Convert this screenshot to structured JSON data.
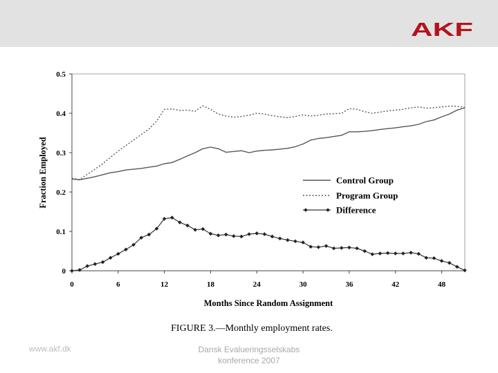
{
  "slide": {
    "logo_text": "AKF",
    "logo_color": "#b5121b",
    "footer_url": "www.akf.dk",
    "footer_line1": "Dansk Evalueringsselskabs",
    "footer_line2": "konference 2007"
  },
  "chart_data": {
    "type": "line",
    "title": "FIGURE 3.—Monthly employment rates.",
    "xlabel": "Months Since Random Assignment",
    "ylabel": "Fraction Employed",
    "xlim": [
      0,
      51
    ],
    "ylim": [
      0,
      0.5
    ],
    "xticks": [
      0,
      6,
      12,
      18,
      24,
      30,
      36,
      42,
      48
    ],
    "xtick_labels": [
      "0",
      "6",
      "12",
      "18",
      "24",
      "30",
      "36",
      "42",
      "48"
    ],
    "yticks": [
      0,
      0.1,
      0.2,
      0.3,
      0.4,
      0.5
    ],
    "ytick_labels": [
      "0",
      "0.1",
      "0.2",
      "0.3",
      "0.4",
      "0.5"
    ],
    "legend": {
      "placement": "middle-right"
    },
    "series": [
      {
        "name": "Control Group",
        "style": "solid",
        "x": [
          0,
          1,
          2,
          3,
          4,
          5,
          6,
          7,
          8,
          9,
          10,
          11,
          12,
          13,
          14,
          15,
          16,
          17,
          18,
          19,
          20,
          21,
          22,
          23,
          24,
          25,
          26,
          27,
          28,
          29,
          30,
          31,
          32,
          33,
          34,
          35,
          36,
          37,
          38,
          39,
          40,
          41,
          42,
          43,
          44,
          45,
          46,
          47,
          48,
          49,
          50,
          51
        ],
        "values": [
          0.233,
          0.231,
          0.235,
          0.239,
          0.244,
          0.249,
          0.252,
          0.256,
          0.258,
          0.26,
          0.263,
          0.266,
          0.272,
          0.275,
          0.283,
          0.292,
          0.3,
          0.31,
          0.314,
          0.31,
          0.301,
          0.303,
          0.305,
          0.3,
          0.304,
          0.306,
          0.307,
          0.309,
          0.311,
          0.315,
          0.322,
          0.332,
          0.336,
          0.338,
          0.341,
          0.344,
          0.353,
          0.353,
          0.354,
          0.356,
          0.359,
          0.361,
          0.363,
          0.366,
          0.368,
          0.372,
          0.379,
          0.383,
          0.391,
          0.398,
          0.408,
          0.414
        ]
      },
      {
        "name": "Program Group",
        "style": "dotted",
        "x": [
          0,
          1,
          2,
          3,
          4,
          5,
          6,
          7,
          8,
          9,
          10,
          11,
          12,
          13,
          14,
          15,
          16,
          17,
          18,
          19,
          20,
          21,
          22,
          23,
          24,
          25,
          26,
          27,
          28,
          29,
          30,
          31,
          32,
          33,
          34,
          35,
          36,
          37,
          38,
          39,
          40,
          41,
          42,
          43,
          44,
          45,
          46,
          47,
          48,
          49,
          50,
          51
        ],
        "values": [
          0.235,
          0.232,
          0.245,
          0.258,
          0.272,
          0.288,
          0.304,
          0.318,
          0.332,
          0.346,
          0.36,
          0.38,
          0.41,
          0.411,
          0.407,
          0.408,
          0.405,
          0.419,
          0.41,
          0.398,
          0.393,
          0.39,
          0.392,
          0.395,
          0.4,
          0.398,
          0.394,
          0.391,
          0.389,
          0.392,
          0.396,
          0.393,
          0.395,
          0.398,
          0.399,
          0.4,
          0.412,
          0.41,
          0.404,
          0.4,
          0.403,
          0.406,
          0.408,
          0.41,
          0.414,
          0.416,
          0.413,
          0.414,
          0.416,
          0.418,
          0.418,
          0.415
        ]
      },
      {
        "name": "Difference",
        "style": "solid-diamond",
        "x": [
          0,
          1,
          2,
          3,
          4,
          5,
          6,
          7,
          8,
          9,
          10,
          11,
          12,
          13,
          14,
          15,
          16,
          17,
          18,
          19,
          20,
          21,
          22,
          23,
          24,
          25,
          26,
          27,
          28,
          29,
          30,
          31,
          32,
          33,
          34,
          35,
          36,
          37,
          38,
          39,
          40,
          41,
          42,
          43,
          44,
          45,
          46,
          47,
          48,
          49,
          50,
          51
        ],
        "values": [
          0.0,
          0.002,
          0.012,
          0.017,
          0.022,
          0.033,
          0.043,
          0.054,
          0.066,
          0.084,
          0.092,
          0.107,
          0.132,
          0.135,
          0.123,
          0.115,
          0.104,
          0.106,
          0.094,
          0.09,
          0.092,
          0.088,
          0.087,
          0.093,
          0.095,
          0.093,
          0.087,
          0.082,
          0.078,
          0.075,
          0.072,
          0.061,
          0.06,
          0.063,
          0.057,
          0.058,
          0.059,
          0.057,
          0.05,
          0.042,
          0.044,
          0.045,
          0.044,
          0.044,
          0.046,
          0.043,
          0.033,
          0.032,
          0.025,
          0.02,
          0.01,
          0.001
        ]
      }
    ]
  }
}
